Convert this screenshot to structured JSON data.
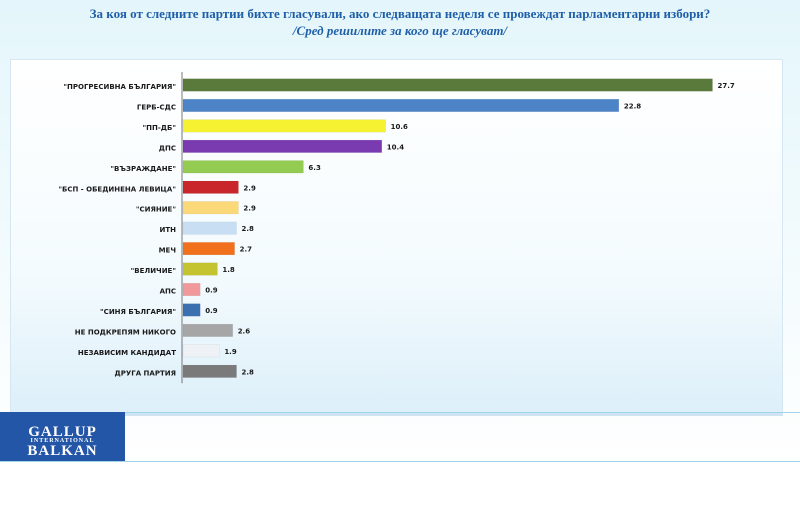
{
  "header": {
    "title": "За коя от следните партии бихте  гласували,  ако следващата неделя се провеждат парламентарни избори?",
    "subtitle": "/Сред решилите за кого ще гласуват/"
  },
  "logo": {
    "line1": "GALLUP",
    "line2": "INTERNATIONAL",
    "line3": "BALKAN"
  },
  "chart_data": {
    "type": "bar",
    "orientation": "horizontal",
    "categories": [
      "\"ПРОГРЕСИВНА БЪЛГАРИЯ\"",
      "ГЕРБ-СДС",
      "\"ПП-ДБ\"",
      "ДПС",
      "\"ВЪЗРАЖДАНЕ\"",
      "\"БСП - ОБЕДИНЕНА ЛЕВИЦА\"",
      "\"СИЯНИЕ\"",
      "ИТН",
      "МЕЧ",
      "\"ВЕЛИЧИЕ\"",
      "АПС",
      "\"СИНЯ БЪЛГАРИЯ\"",
      "НЕ ПОДКРЕПЯМ НИКОГО",
      "НЕЗАВИСИМ КАНДИДАТ",
      "ДРУГА ПАРТИЯ"
    ],
    "values": [
      27.7,
      22.8,
      10.6,
      10.4,
      6.3,
      2.9,
      2.9,
      2.8,
      2.7,
      1.8,
      0.9,
      0.9,
      2.6,
      1.9,
      2.8
    ],
    "value_labels": [
      "27.7",
      "22.8",
      "10.6",
      "10.4",
      "6.3",
      "2.9",
      "2.9",
      "2.8",
      "2.7",
      "1.8",
      "0.9",
      "0.9",
      "2.6",
      "1.9",
      "2.8"
    ],
    "colors": [
      "#5a7a3c",
      "#4d84c8",
      "#f6f232",
      "#7a3ab0",
      "#94cc52",
      "#c8262a",
      "#fbd878",
      "#c8dff3",
      "#f0701c",
      "#c4c430",
      "#f0989a",
      "#3a70b0",
      "#a6a6a6",
      "#eef2f6",
      "#7a7a7a"
    ],
    "xlim": [
      0,
      30
    ],
    "grid": false,
    "legend": "none"
  }
}
